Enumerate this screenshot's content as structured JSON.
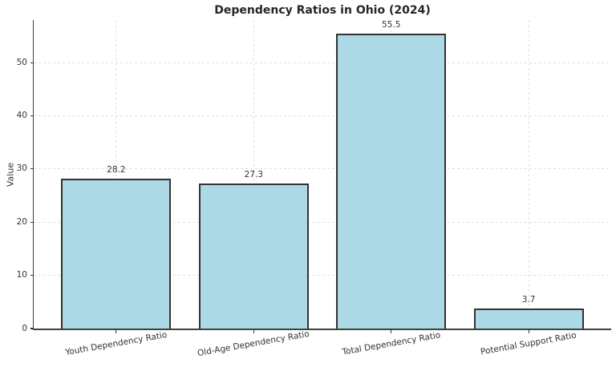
{
  "title": "Dependency Ratios in Ohio (2024)",
  "chart_data": {
    "type": "bar",
    "title": "Dependency Ratios in Ohio (2024)",
    "xlabel": "",
    "ylabel": "Value",
    "categories": [
      "Youth Dependency Ratio",
      "Old-Age Dependency Ratio",
      "Total Dependency Ratio",
      "Potential Support Ratio"
    ],
    "values": [
      28.2,
      27.3,
      55.5,
      3.7
    ],
    "data_labels": [
      "28.2",
      "27.3",
      "55.5",
      "3.7"
    ],
    "ylim": [
      0,
      58
    ],
    "yticks": [
      0,
      10,
      20,
      30,
      40,
      50
    ],
    "grid": true,
    "grid_style": "dashed",
    "legend": "none",
    "colors": {
      "bar_fill": "#ADD8E6",
      "bar_edge": "#333333",
      "background": "#FFFFFF",
      "text": "#333333",
      "grid": "#DEDEDE",
      "spine": "#404040"
    }
  }
}
